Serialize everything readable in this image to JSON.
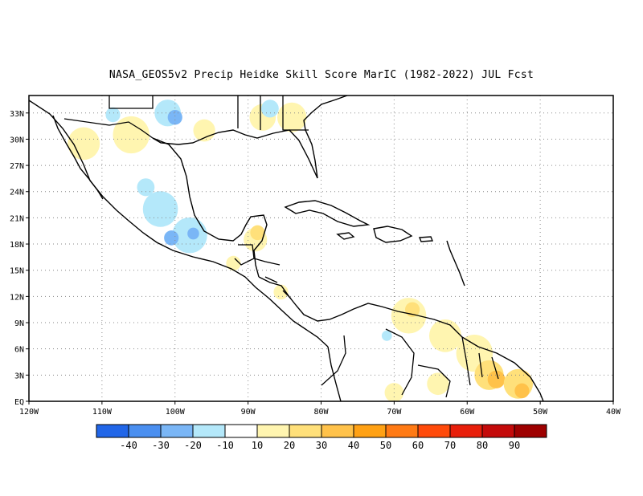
{
  "title": "NASA_GEOS5v2 Precip Heidke Skill Score MarIC (1982-2022) JUL Fcst",
  "map": {
    "lon_range": [
      -120,
      -40
    ],
    "lat_range": [
      0,
      35
    ],
    "lat_ticks": [
      {
        "value": 33,
        "label": "33N"
      },
      {
        "value": 30,
        "label": "30N"
      },
      {
        "value": 27,
        "label": "27N"
      },
      {
        "value": 24,
        "label": "24N"
      },
      {
        "value": 21,
        "label": "21N"
      },
      {
        "value": 18,
        "label": "18N"
      },
      {
        "value": 15,
        "label": "15N"
      },
      {
        "value": 12,
        "label": "12N"
      },
      {
        "value": 9,
        "label": "9N"
      },
      {
        "value": 6,
        "label": "6N"
      },
      {
        "value": 3,
        "label": "3N"
      },
      {
        "value": 0,
        "label": "EQ"
      }
    ],
    "lon_ticks": [
      {
        "value": -120,
        "label": "120W"
      },
      {
        "value": -110,
        "label": "110W"
      },
      {
        "value": -100,
        "label": "100W"
      },
      {
        "value": -90,
        "label": "90W"
      },
      {
        "value": -80,
        "label": "80W"
      },
      {
        "value": -70,
        "label": "70W"
      },
      {
        "value": -60,
        "label": "60W"
      },
      {
        "value": -50,
        "label": "50W"
      },
      {
        "value": -40,
        "label": "40W"
      }
    ],
    "grid": "dotted"
  },
  "colorbar": {
    "colors": [
      "#2166e8",
      "#4a8ff0",
      "#7ab6f6",
      "#b4e8fa",
      "#ffffff",
      "#fff5b0",
      "#ffe07a",
      "#ffc24a",
      "#ffa114",
      "#ff7a14",
      "#ff4a0a",
      "#e81e0a",
      "#c40a0a",
      "#9e0000"
    ],
    "labels": [
      "-40",
      "-30",
      "-20",
      "-10",
      "10",
      "20",
      "30",
      "40",
      "50",
      "60",
      "70",
      "80",
      "90"
    ]
  },
  "regions": [
    {
      "color": "#fff5b0",
      "lon": -112.5,
      "lat": 29.5,
      "r": 2.2
    },
    {
      "color": "#fff5b0",
      "lon": -106,
      "lat": 30.5,
      "r": 2.5
    },
    {
      "color": "#b4e8fa",
      "lon": -101,
      "lat": 33,
      "r": 1.8
    },
    {
      "color": "#7ab6f6",
      "lon": -100,
      "lat": 32.5,
      "r": 1.0
    },
    {
      "color": "#b4e8fa",
      "lon": -108.5,
      "lat": 32.8,
      "r": 1.0
    },
    {
      "color": "#fff5b0",
      "lon": -96,
      "lat": 31,
      "r": 1.5
    },
    {
      "color": "#fff5b0",
      "lon": -88,
      "lat": 32.5,
      "r": 1.8
    },
    {
      "color": "#fff5b0",
      "lon": -84,
      "lat": 32.5,
      "r": 2.0
    },
    {
      "color": "#b4e8fa",
      "lon": -87,
      "lat": 33.5,
      "r": 1.2
    },
    {
      "color": "#b4e8fa",
      "lon": -102,
      "lat": 22,
      "r": 2.4
    },
    {
      "color": "#b4e8fa",
      "lon": -98,
      "lat": 19,
      "r": 2.4
    },
    {
      "color": "#7ab6f6",
      "lon": -100.5,
      "lat": 18.7,
      "r": 1.0
    },
    {
      "color": "#7ab6f6",
      "lon": -97.5,
      "lat": 19.2,
      "r": 0.8
    },
    {
      "color": "#b4e8fa",
      "lon": -104,
      "lat": 24.5,
      "r": 1.2
    },
    {
      "color": "#fff5b0",
      "lon": -89,
      "lat": 18.5,
      "r": 1.6
    },
    {
      "color": "#ffe07a",
      "lon": -88.7,
      "lat": 19.3,
      "r": 1.0
    },
    {
      "color": "#fff5b0",
      "lon": -92,
      "lat": 15.8,
      "r": 1.0
    },
    {
      "color": "#fff5b0",
      "lon": -85.5,
      "lat": 12.5,
      "r": 1.0
    },
    {
      "color": "#fff5b0",
      "lon": -68,
      "lat": 9.8,
      "r": 2.4
    },
    {
      "color": "#ffe07a",
      "lon": -67.5,
      "lat": 10.5,
      "r": 1.0
    },
    {
      "color": "#fff5b0",
      "lon": -63,
      "lat": 7.5,
      "r": 2.2
    },
    {
      "color": "#b4e8fa",
      "lon": -71,
      "lat": 7.5,
      "r": 0.7
    },
    {
      "color": "#fff5b0",
      "lon": -59,
      "lat": 5.5,
      "r": 2.5
    },
    {
      "color": "#ffe07a",
      "lon": -57,
      "lat": 3,
      "r": 2.0
    },
    {
      "color": "#ffc24a",
      "lon": -56,
      "lat": 2.5,
      "r": 1.2
    },
    {
      "color": "#ffe07a",
      "lon": -53,
      "lat": 2,
      "r": 2.0
    },
    {
      "color": "#ffc24a",
      "lon": -52.5,
      "lat": 1.2,
      "r": 1.0
    },
    {
      "color": "#fff5b0",
      "lon": -64,
      "lat": 2,
      "r": 1.5
    },
    {
      "color": "#fff5b0",
      "lon": -70,
      "lat": 1,
      "r": 1.3
    }
  ]
}
